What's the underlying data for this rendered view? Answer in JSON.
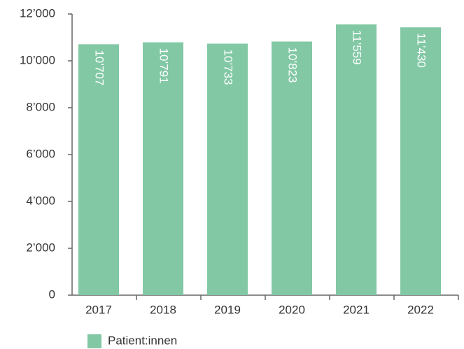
{
  "chart_data": {
    "type": "bar",
    "categories": [
      "2017",
      "2018",
      "2019",
      "2020",
      "2021",
      "2022"
    ],
    "series": [
      {
        "name": "Patient:innen",
        "color": "#82c8a5",
        "values": [
          10707,
          10791,
          10733,
          10823,
          11559,
          11430
        ],
        "value_labels": [
          "10’707",
          "10’791",
          "10’733",
          "10’823",
          "11’559",
          "11’430"
        ]
      }
    ],
    "ylim": [
      0,
      12000
    ],
    "yticks": [
      0,
      {
        "value": 2000,
        "label": "2’000"
      },
      {
        "value": 4000,
        "label": "4’000"
      },
      {
        "value": 6000,
        "label": "6’000"
      },
      {
        "value": 8000,
        "label": "8’000"
      },
      {
        "value": 10000,
        "label": "10’000"
      },
      {
        "value": 12000,
        "label": "12’000"
      }
    ],
    "legend": "bottom-left"
  }
}
